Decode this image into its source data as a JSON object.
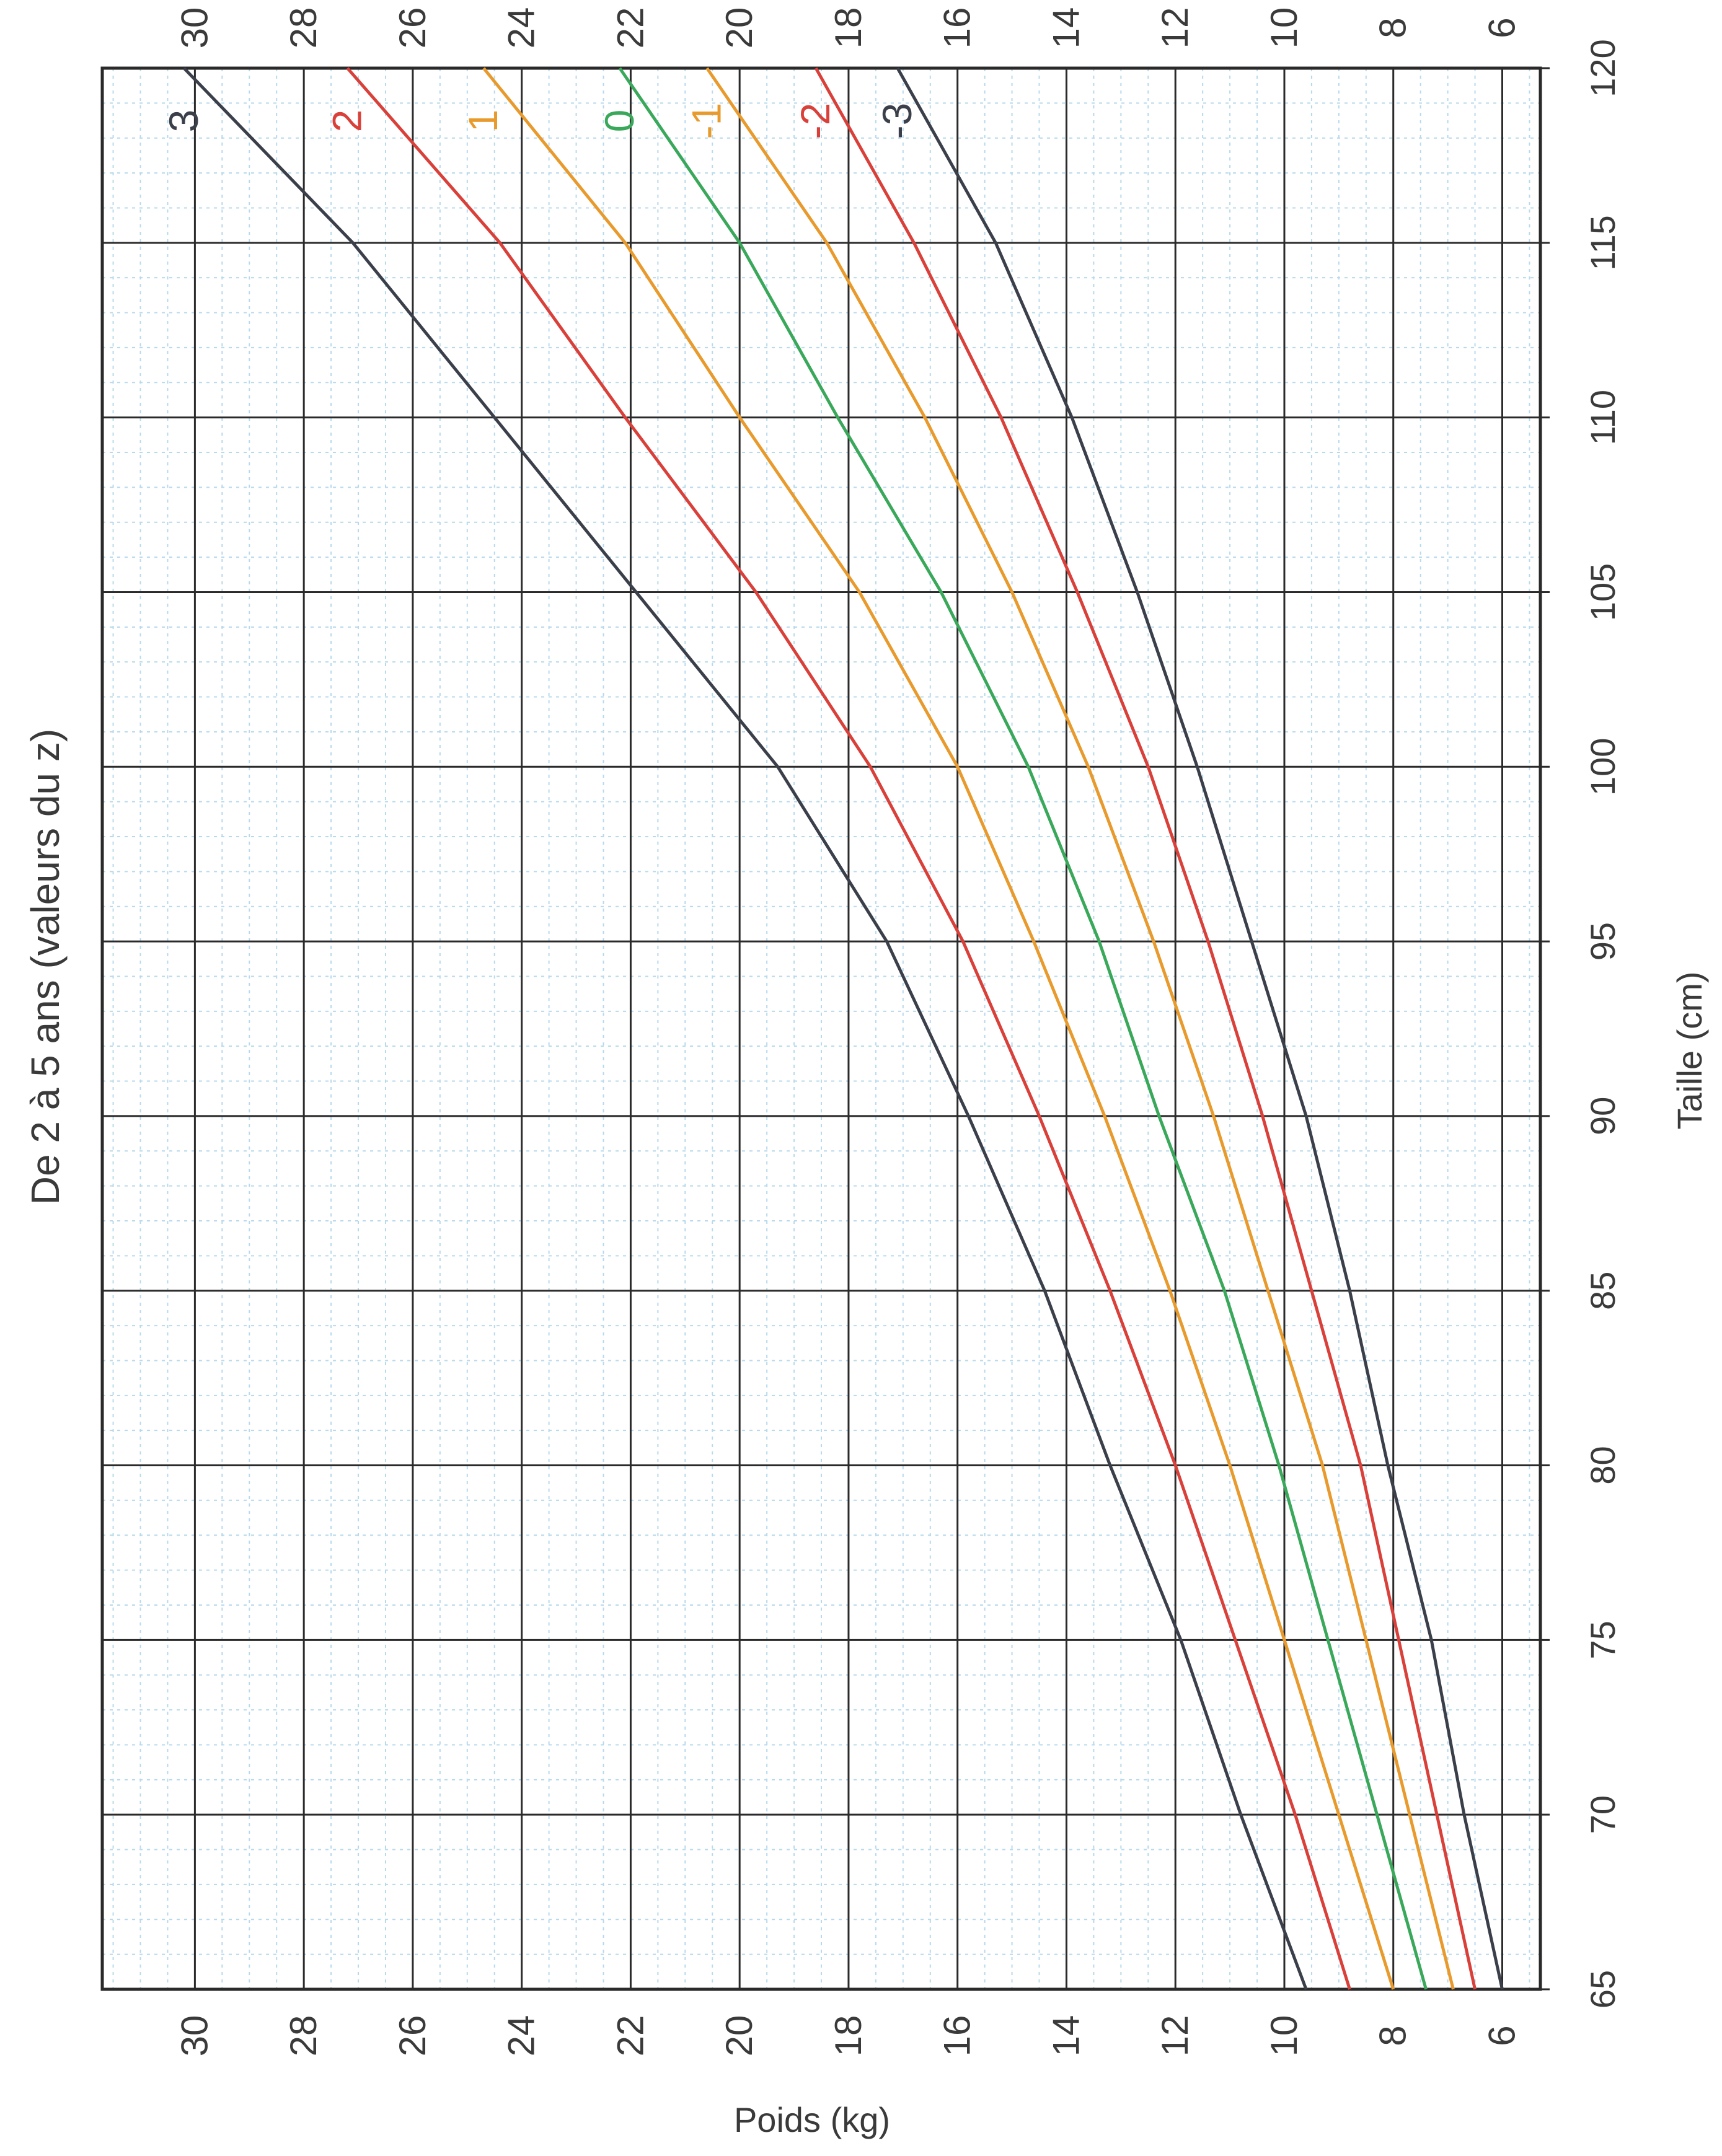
{
  "chart_data": {
    "type": "line",
    "title": "De 2 à 5 ans (valeurs du z)",
    "xlabel": "Taille (cm)",
    "ylabel": "Poids (kg)",
    "xlim": [
      65,
      120
    ],
    "ylim": [
      5.3,
      31.7
    ],
    "x_ticks": [
      "65",
      "70",
      "75",
      "80",
      "85",
      "90",
      "95",
      "100",
      "105",
      "110",
      "115",
      "120"
    ],
    "y_ticks": [
      "6",
      "8",
      "10",
      "12",
      "14",
      "16",
      "18",
      "20",
      "22",
      "24",
      "26",
      "28",
      "30"
    ],
    "grid": true,
    "x": [
      65,
      70,
      75,
      80,
      85,
      90,
      95,
      100,
      105,
      110,
      115,
      120
    ],
    "series": [
      {
        "name": "3",
        "color": "#3a3f4a",
        "values": [
          9.6,
          10.8,
          11.9,
          13.2,
          14.4,
          15.8,
          17.3,
          19.3,
          21.9,
          24.5,
          27.1,
          30.2
        ]
      },
      {
        "name": "2",
        "color": "#d9403a",
        "values": [
          8.8,
          9.8,
          10.9,
          12.0,
          13.2,
          14.5,
          15.9,
          17.6,
          19.7,
          22.1,
          24.4,
          27.2
        ]
      },
      {
        "name": "1",
        "color": "#e89a2c",
        "values": [
          8.0,
          9.0,
          10.0,
          11.0,
          12.1,
          13.3,
          14.6,
          16.0,
          17.8,
          20.0,
          22.1,
          24.7
        ]
      },
      {
        "name": "0",
        "color": "#3aa85a",
        "values": [
          7.4,
          8.3,
          9.2,
          10.1,
          11.1,
          12.3,
          13.4,
          14.7,
          16.3,
          18.2,
          20.0,
          22.2
        ]
      },
      {
        "name": "-1",
        "color": "#e89a2c",
        "values": [
          6.9,
          7.7,
          8.5,
          9.3,
          10.3,
          11.3,
          12.4,
          13.6,
          15.0,
          16.6,
          18.4,
          20.6
        ]
      },
      {
        "name": "-2",
        "color": "#d9403a",
        "values": [
          6.5,
          7.2,
          7.9,
          8.6,
          9.5,
          10.4,
          11.4,
          12.5,
          13.8,
          15.2,
          16.8,
          18.6
        ]
      },
      {
        "name": "-3",
        "color": "#3a3f4a",
        "values": [
          6.0,
          6.7,
          7.3,
          8.1,
          8.8,
          9.6,
          10.6,
          11.6,
          12.7,
          13.9,
          15.3,
          17.1
        ]
      }
    ]
  }
}
